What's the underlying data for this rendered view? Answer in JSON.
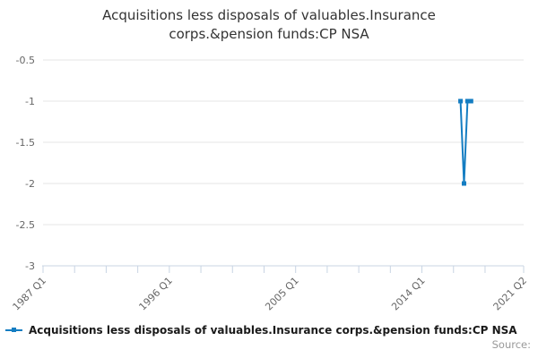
{
  "title": {
    "lines": [
      "Acquisitions less disposals of valuables.Insurance",
      "corps.&pension funds:CP NSA"
    ]
  },
  "legend": {
    "label": "Acquisitions less disposals of valuables.Insurance corps.&pension funds:CP NSA"
  },
  "source_label": "Source:",
  "colors": {
    "line": "#147dc2",
    "grid": "#e6e6e6",
    "axis": "#c8d4e3",
    "tick_label": "#666666",
    "title": "#333333",
    "legend_text": "#1a1a1a",
    "source": "#999999"
  },
  "chart_data": {
    "type": "line",
    "title": "Acquisitions less disposals of valuables.Insurance corps.&pension funds:CP NSA",
    "xlabel": "",
    "ylabel": "",
    "grid": true,
    "legend_position": "bottom",
    "categories": [
      "2016 Q4",
      "2017 Q1",
      "2017 Q2",
      "2017 Q3"
    ],
    "values": [
      -1,
      -2,
      -1,
      -1
    ],
    "series": [
      {
        "name": "Acquisitions less disposals of valuables.Insurance corps.&pension funds:CP NSA",
        "points": [
          {
            "q": 119,
            "quarter": "2016 Q4",
            "v": -1
          },
          {
            "q": 120,
            "quarter": "2017 Q1",
            "v": -2
          },
          {
            "q": 121,
            "quarter": "2017 Q2",
            "v": -1
          },
          {
            "q": 122,
            "quarter": "2017 Q3",
            "v": -1
          }
        ]
      }
    ],
    "x_axis": {
      "start": "1987 Q1",
      "end": "2021 Q2",
      "total_quarters": 137,
      "tick_every_quarters": 9,
      "labeled_ticks": [
        {
          "q": 0,
          "label": "1987 Q1"
        },
        {
          "q": 36,
          "label": "1996 Q1"
        },
        {
          "q": 72,
          "label": "2005 Q1"
        },
        {
          "q": 108,
          "label": "2014 Q1"
        },
        {
          "q": 137,
          "label": "2021 Q2"
        }
      ]
    },
    "y_axis": {
      "ticks": [
        -0.5,
        -1,
        -1.5,
        -2,
        -2.5,
        -3
      ],
      "min": -3,
      "max": -0.5,
      "ylim": [
        -3,
        -0.5
      ]
    }
  }
}
